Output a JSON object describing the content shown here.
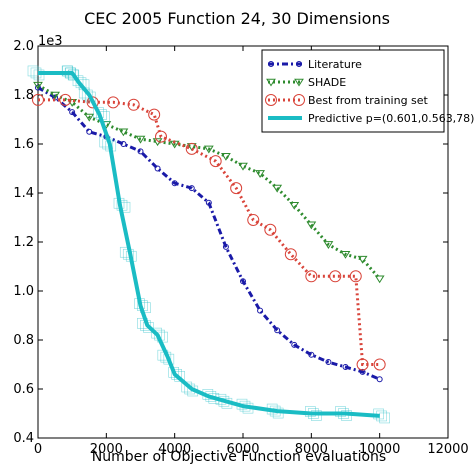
{
  "chart_data": {
    "type": "line",
    "title": "CEC 2005 Function 24, 30 Dimensions",
    "xlabel": "Number of Objective Function evaluations",
    "ylabel": "",
    "y_multiplier_label": "1e3",
    "xlim": [
      0,
      12000
    ],
    "ylim": [
      0.4,
      2.0
    ],
    "x_ticks": [
      0,
      2000,
      4000,
      6000,
      8000,
      10000,
      12000
    ],
    "x_tick_labels": [
      "0",
      "2000",
      "4000",
      "6000",
      "8000",
      "10000",
      "12000"
    ],
    "y_ticks": [
      0.4,
      0.6,
      0.8,
      1.0,
      1.2,
      1.4,
      1.6,
      1.8,
      2.0
    ],
    "y_tick_labels": [
      "0.4",
      "0.6",
      "0.8",
      "1.0",
      "1.2",
      "1.4",
      "1.6",
      "1.8",
      "2.0"
    ],
    "grid": false,
    "legend_position": "top-right",
    "series": [
      {
        "name": "Literature",
        "color": "#1a1aa8",
        "style": "dashdot",
        "marker": "circle-small",
        "x": [
          0,
          500,
          1000,
          1500,
          2000,
          2500,
          3000,
          3500,
          4000,
          4500,
          5000,
          5500,
          6000,
          6500,
          7000,
          7500,
          8000,
          8500,
          9000,
          9500,
          10000
        ],
        "y": [
          1.83,
          1.79,
          1.73,
          1.65,
          1.63,
          1.6,
          1.57,
          1.5,
          1.44,
          1.42,
          1.36,
          1.18,
          1.04,
          0.92,
          0.84,
          0.78,
          0.74,
          0.71,
          0.69,
          0.67,
          0.64
        ]
      },
      {
        "name": "SHADE",
        "color": "#2e8b2e",
        "style": "dotted",
        "marker": "triangle-down",
        "x": [
          0,
          500,
          1000,
          1500,
          2000,
          2500,
          3000,
          3500,
          4000,
          4500,
          5000,
          5500,
          6000,
          6500,
          7000,
          7500,
          8000,
          8500,
          9000,
          9500,
          10000
        ],
        "y": [
          1.84,
          1.8,
          1.77,
          1.71,
          1.68,
          1.65,
          1.62,
          1.61,
          1.6,
          1.59,
          1.58,
          1.55,
          1.51,
          1.48,
          1.42,
          1.35,
          1.27,
          1.19,
          1.15,
          1.13,
          1.05
        ]
      },
      {
        "name": "Best from training set",
        "color": "#d9443a",
        "style": "dotted",
        "marker": "circle-large",
        "x": [
          0,
          800,
          1600,
          2200,
          2800,
          3400,
          3600,
          4500,
          5200,
          5800,
          6300,
          6800,
          7400,
          8000,
          8700,
          9300,
          9500,
          10000
        ],
        "y": [
          1.78,
          1.78,
          1.77,
          1.77,
          1.76,
          1.72,
          1.63,
          1.58,
          1.53,
          1.42,
          1.29,
          1.25,
          1.15,
          1.06,
          1.06,
          1.06,
          0.7,
          0.7
        ]
      },
      {
        "name": "Predictive p=(0.601,0.563,78)",
        "color": "#1abcc4",
        "style": "solid-thick",
        "marker": "none",
        "x": [
          0,
          900,
          1000,
          1200,
          1500,
          1800,
          2100,
          2400,
          2700,
          3000,
          3200,
          3500,
          3800,
          4000,
          4500,
          5000,
          5500,
          6000,
          7000,
          8000,
          9000,
          10000
        ],
        "y": [
          1.89,
          1.89,
          1.89,
          1.85,
          1.8,
          1.72,
          1.6,
          1.35,
          1.15,
          0.94,
          0.86,
          0.82,
          0.73,
          0.66,
          0.6,
          0.57,
          0.55,
          0.53,
          0.51,
          0.5,
          0.5,
          0.49
        ]
      }
    ]
  }
}
